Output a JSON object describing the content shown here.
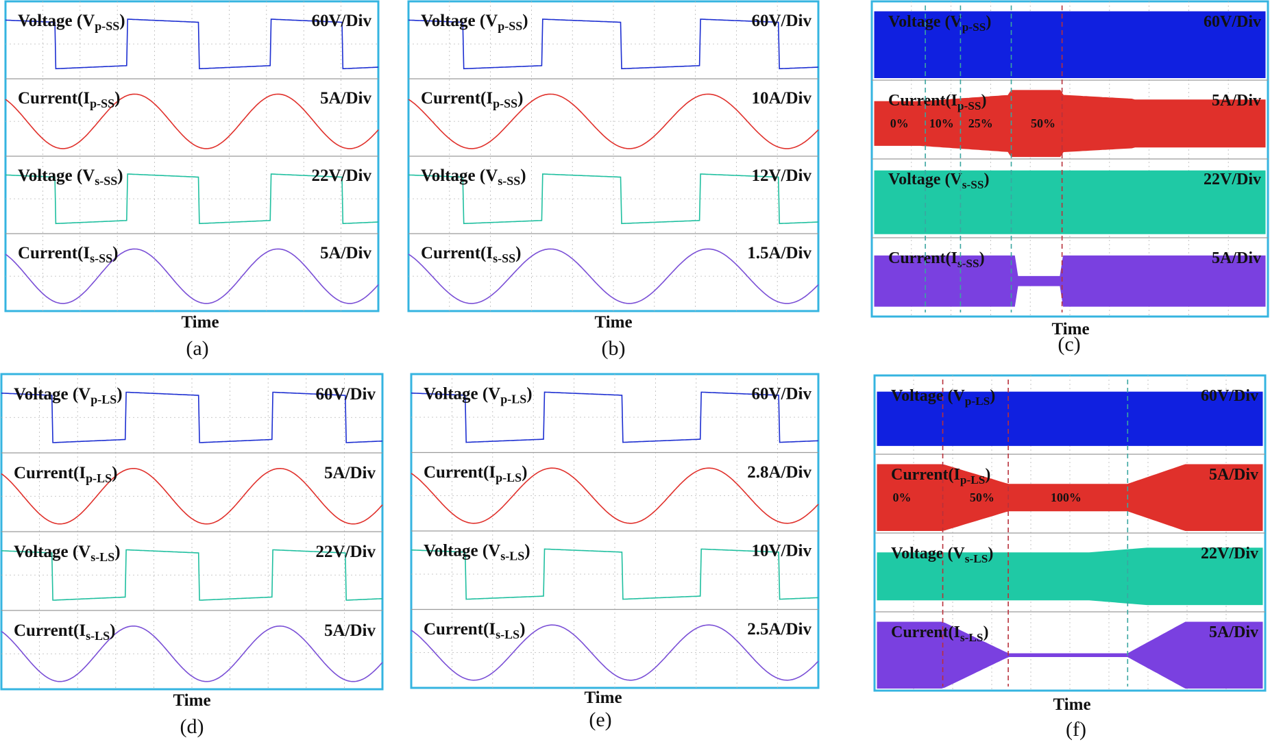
{
  "panels": [
    {
      "id": "a",
      "caption": "(a)",
      "xlabel": "Time",
      "mode": "steady",
      "traces": [
        {
          "kind": "voltage",
          "label": "Voltage (V",
          "sub": "p-SS",
          "close": ")",
          "scale": "60V/Div",
          "color": "#1c2ed1"
        },
        {
          "kind": "current",
          "label": "Current(I",
          "sub": "p-SS",
          "close": ")",
          "scale": "5A/Div",
          "color": "#e0302b"
        },
        {
          "kind": "voltage",
          "label": "Voltage (V",
          "sub": "s-SS",
          "close": ")",
          "scale": "22V/Div",
          "color": "#1fbf9f"
        },
        {
          "kind": "current",
          "label": "Current(I",
          "sub": "s-SS",
          "close": ")",
          "scale": "5A/Div",
          "color": "#7a4fd6"
        }
      ]
    },
    {
      "id": "b",
      "caption": "(b)",
      "xlabel": "Time",
      "mode": "steady",
      "traces": [
        {
          "kind": "voltage",
          "label": "Voltage (V",
          "sub": "p-SS",
          "close": ")",
          "scale": "60V/Div",
          "color": "#1c2ed1"
        },
        {
          "kind": "current",
          "label": "Current(I",
          "sub": "p-SS",
          "close": ")",
          "scale": "10A/Div",
          "color": "#e0302b"
        },
        {
          "kind": "voltage",
          "label": "Voltage (V",
          "sub": "s-SS",
          "close": ")",
          "scale": "12V/Div",
          "color": "#1fbf9f"
        },
        {
          "kind": "current",
          "label": "Current(I",
          "sub": "s-SS",
          "close": ")",
          "scale": "1.5A/Div",
          "color": "#7a4fd6"
        }
      ]
    },
    {
      "id": "c",
      "caption": "(c)",
      "xlabel": "Time",
      "mode": "envelope",
      "traces": [
        {
          "kind": "voltage",
          "label": "Voltage (V",
          "sub": "p-SS",
          "close": ")",
          "scale": "60V/Div",
          "color": "#1020e0"
        },
        {
          "kind": "current",
          "label": "Current(I",
          "sub": "p-SS",
          "close": ")",
          "scale": "5A/Div",
          "color": "#e0302b"
        },
        {
          "kind": "voltage",
          "label": "Voltage (V",
          "sub": "s-SS",
          "close": ")",
          "scale": "22V/Div",
          "color": "#1fc9a5"
        },
        {
          "kind": "current",
          "label": "Current(I",
          "sub": "s-SS",
          "close": ")",
          "scale": "5A/Div",
          "color": "#7a40e0"
        }
      ],
      "percentages": [
        "0%",
        "10%",
        "25%",
        "50%"
      ]
    },
    {
      "id": "d",
      "caption": "(d)",
      "xlabel": "Time",
      "mode": "steady",
      "traces": [
        {
          "kind": "voltage",
          "label": "Voltage (V",
          "sub": "p-LS",
          "close": ")",
          "scale": "60V/Div",
          "color": "#1c2ed1"
        },
        {
          "kind": "current",
          "label": "Current(I",
          "sub": "p-LS",
          "close": ")",
          "scale": "5A/Div",
          "color": "#e0302b"
        },
        {
          "kind": "voltage",
          "label": "Voltage (V",
          "sub": "s-LS",
          "close": ")",
          "scale": "22V/Div",
          "color": "#1fbf9f"
        },
        {
          "kind": "current",
          "label": "Current(I",
          "sub": "s-LS",
          "close": ")",
          "scale": "5A/Div",
          "color": "#7a4fd6"
        }
      ]
    },
    {
      "id": "e",
      "caption": "(e)",
      "xlabel": "Time",
      "mode": "steady",
      "traces": [
        {
          "kind": "voltage",
          "label": "Voltage (V",
          "sub": "p-LS",
          "close": ")",
          "scale": "60V/Div",
          "color": "#1c2ed1"
        },
        {
          "kind": "current",
          "label": "Current(I",
          "sub": "p-LS",
          "close": ")",
          "scale": "2.8A/Div",
          "color": "#e0302b"
        },
        {
          "kind": "voltage",
          "label": "Voltage (V",
          "sub": "s-LS",
          "close": ")",
          "scale": "10V/Div",
          "color": "#1fbf9f"
        },
        {
          "kind": "current",
          "label": "Current(I",
          "sub": "s-LS",
          "close": ")",
          "scale": "2.5A/Div",
          "color": "#7a4fd6"
        }
      ]
    },
    {
      "id": "f",
      "caption": "(f)",
      "xlabel": "Time",
      "mode": "envelope",
      "traces": [
        {
          "kind": "voltage",
          "label": "Voltage (V",
          "sub": "p-LS",
          "close": ")",
          "scale": "60V/Div",
          "color": "#1020e0"
        },
        {
          "kind": "current",
          "label": "Current(I",
          "sub": "p-LS",
          "close": ")",
          "scale": "5A/Div",
          "color": "#e0302b"
        },
        {
          "kind": "voltage",
          "label": "Voltage (V",
          "sub": "s-LS",
          "close": ")",
          "scale": "22V/Div",
          "color": "#1fc9a5"
        },
        {
          "kind": "current",
          "label": "Current(I",
          "sub": "s-LS",
          "close": ")",
          "scale": "5A/Div",
          "color": "#7a40e0"
        }
      ],
      "percentages": [
        "0%",
        "50%",
        "100%"
      ]
    }
  ],
  "colors": {
    "frame": "#35b4e0",
    "grid": "#b8b8b8",
    "divider": "#9a9a9a"
  }
}
